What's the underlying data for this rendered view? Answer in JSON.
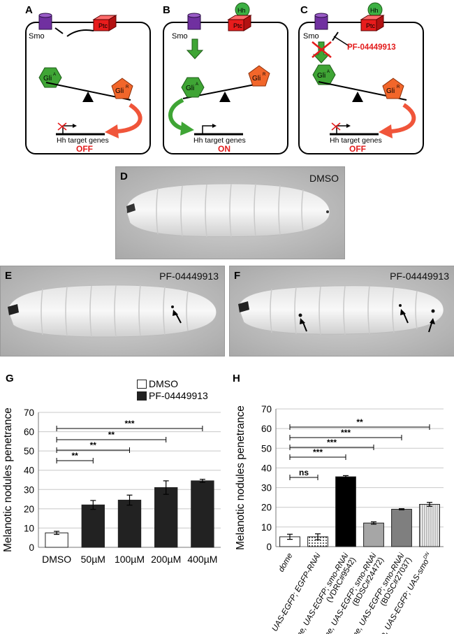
{
  "panels": {
    "A": {
      "letter": "A",
      "smo": "Smo",
      "ptc": "Ptc",
      "gliA": "Gli",
      "gliA_sup": "A",
      "gliR": "Gli",
      "gliR_sup": "R",
      "target": "Hh target genes",
      "state": "OFF"
    },
    "B": {
      "letter": "B",
      "hh": "Hh",
      "smo": "Smo",
      "ptc": "Ptc",
      "gliA": "Gli",
      "gliA_sup": "A",
      "gliR": "Gli",
      "gliR_sup": "R",
      "target": "Hh target genes",
      "state": "ON"
    },
    "C": {
      "letter": "C",
      "hh": "Hh",
      "smo": "Smo",
      "ptc": "Ptc",
      "drug": "PF-04449913",
      "gliA": "Gli",
      "gliA_sup": "A",
      "gliR": "Gli",
      "gliR_sup": "R",
      "target": "Hh target genes",
      "state": "OFF"
    },
    "D": {
      "letter": "D",
      "label": "DMSO"
    },
    "E": {
      "letter": "E",
      "label": "PF-04449913"
    },
    "F": {
      "letter": "F",
      "label": "PF-04449913"
    },
    "G": {
      "letter": "G"
    },
    "H": {
      "letter": "H"
    }
  },
  "colors": {
    "smo": "#7030a0",
    "ptc": "#e81c1c",
    "hh": "#3cb043",
    "gliA": "#3fa535",
    "gliR": "#f2662a",
    "state_text": "#e31b1b",
    "arrow_red": "#f0553a",
    "arrow_green": "#3fa535",
    "bar_dark": "#222222"
  },
  "chart_data": [
    {
      "type": "bar",
      "panel": "G",
      "ylabel": "Melanotic nodules penetrance",
      "xlabel": "",
      "ylim": [
        0,
        70
      ],
      "yticks": [
        0,
        10,
        20,
        30,
        40,
        50,
        60,
        70
      ],
      "categories": [
        "DMSO",
        "50µM",
        "100µM",
        "200µM",
        "400µM"
      ],
      "values": [
        7.5,
        22,
        24.5,
        31,
        34.5
      ],
      "errors": [
        0.8,
        2.3,
        2.6,
        3.5,
        0.8
      ],
      "bar_series": [
        "DMSO",
        "PF-04449913",
        "PF-04449913",
        "PF-04449913",
        "PF-04449913"
      ],
      "legend": [
        "DMSO",
        "PF-04449913"
      ],
      "legend_position": "top-right",
      "significance": [
        {
          "from": 0,
          "to": 1,
          "label": "**"
        },
        {
          "from": 0,
          "to": 2,
          "label": "**"
        },
        {
          "from": 0,
          "to": 3,
          "label": "**"
        },
        {
          "from": 0,
          "to": 4,
          "label": "***"
        }
      ],
      "grid": true
    },
    {
      "type": "bar",
      "panel": "H",
      "ylabel": "Melanotic nodules penetrance",
      "xlabel": "",
      "ylim": [
        0,
        70
      ],
      "yticks": [
        0,
        10,
        20,
        30,
        40,
        50,
        60,
        70
      ],
      "categories": [
        [
          "dome"
        ],
        [
          "dome, UAS-EGFP; EGFP-RNAi"
        ],
        [
          "dome, UAS-EGFP; smo-RNAi",
          "(VDRC#9542)"
        ],
        [
          "dome, UAS-EGFP; smo-RNAi",
          "(BDSC#24472)"
        ],
        [
          "dome, UAS-EGFP; smo-RNAi",
          "(BDSC#27037)"
        ],
        [
          "dome, UAS-EGFP; UAS-smo",
          "DN"
        ]
      ],
      "values": [
        5,
        5,
        35.5,
        12,
        19,
        21.5
      ],
      "errors": [
        1.3,
        1.5,
        0.6,
        0.6,
        0.3,
        1.0
      ],
      "fills": [
        "#ffffff",
        "dots",
        "#000000",
        "#a6a6a6",
        "#7f7f7f",
        "vstripes"
      ],
      "significance": [
        {
          "from": 0,
          "to": 1,
          "label": "ns"
        },
        {
          "from": 0,
          "to": 2,
          "label": "***"
        },
        {
          "from": 0,
          "to": 3,
          "label": "***"
        },
        {
          "from": 0,
          "to": 4,
          "label": "***"
        },
        {
          "from": 0,
          "to": 5,
          "label": "**"
        }
      ],
      "grid": true
    }
  ]
}
